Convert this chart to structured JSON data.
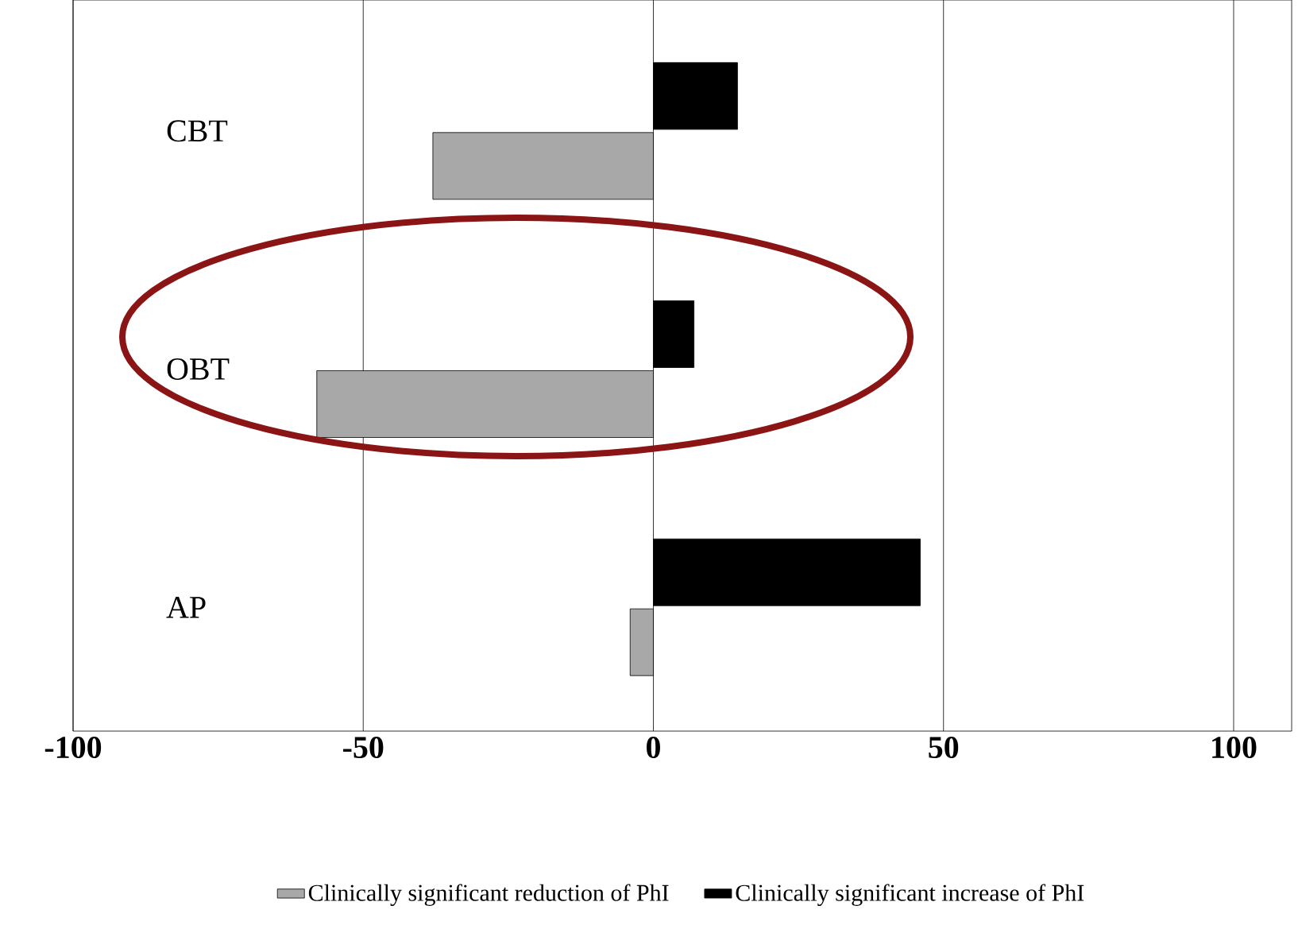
{
  "chart_data": {
    "type": "bar",
    "orientation": "horizontal",
    "categories": [
      "CBT",
      "OBT",
      "AP"
    ],
    "series": [
      {
        "name": "Clinically significant reduction of PhI",
        "color": "#a8a8a8",
        "values": [
          -38,
          -58,
          -4
        ]
      },
      {
        "name": "Clinically significant increase of PhI",
        "color": "#000000",
        "values": [
          14.5,
          7,
          46
        ]
      }
    ],
    "xlim": [
      -100,
      110
    ],
    "xticks": [
      -100,
      -50,
      0,
      50,
      100
    ],
    "grid": "x",
    "legend": "bottom"
  }
}
